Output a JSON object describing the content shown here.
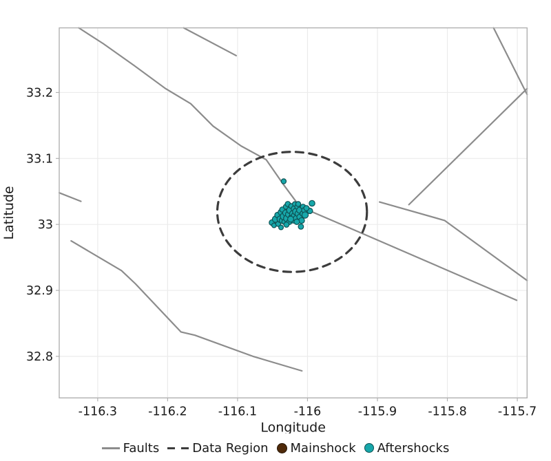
{
  "figure": {
    "background": "#ffffff"
  },
  "colors": {
    "fault": "#8c8c8c",
    "data_region": "#3c3c3c",
    "mainshock_fill": "#4f2a0a",
    "mainshock_stroke": "#231304",
    "aftershock_fill": "#17a7aa",
    "aftershock_stroke": "#0e5254",
    "grid": "#ebebeb",
    "border": "#b0b0b0",
    "tick_mark": "#b0b0b0",
    "text": "#1a1a1a"
  },
  "legend": {
    "items": [
      {
        "label": "Faults",
        "type": "line"
      },
      {
        "label": "Data Region",
        "type": "dashed"
      },
      {
        "label": "Mainshock",
        "type": "dot"
      },
      {
        "label": "Aftershocks",
        "type": "dot"
      }
    ]
  },
  "chart_data": {
    "type": "scatter",
    "title": "",
    "xlabel": "Longitude",
    "ylabel": "Latitude",
    "xlim": [
      -116.355,
      -115.686
    ],
    "ylim": [
      32.737,
      33.298
    ],
    "xticks": [
      -116.3,
      -116.2,
      -116.1,
      -116.0,
      -115.9,
      -115.8,
      -115.7
    ],
    "xtick_labels": [
      "-116.3",
      "-116.2",
      "-116.1",
      "-116",
      "-115.9",
      "-115.8",
      "-115.7"
    ],
    "yticks": [
      32.8,
      32.9,
      33.0,
      33.1,
      33.2
    ],
    "ytick_labels": [
      "32.8",
      "32.9",
      "33",
      "33.1",
      "33.2"
    ],
    "grid": true,
    "legend_position": "bottom",
    "faults": [
      [
        [
          -116.327,
          33.298
        ],
        [
          -116.292,
          33.274
        ],
        [
          -116.248,
          33.241
        ],
        [
          -116.203,
          33.206
        ],
        [
          -116.167,
          33.183
        ],
        [
          -116.135,
          33.149
        ],
        [
          -116.095,
          33.119
        ],
        [
          -116.059,
          33.098
        ],
        [
          -116.034,
          33.06
        ],
        [
          -116.011,
          33.027
        ],
        [
          -115.921,
          32.986
        ],
        [
          -115.701,
          32.885
        ]
      ],
      [
        [
          -115.897,
          33.034
        ],
        [
          -115.804,
          33.006
        ],
        [
          -115.686,
          32.915
        ]
      ],
      [
        [
          -115.734,
          33.298
        ],
        [
          -115.686,
          33.197
        ]
      ],
      [
        [
          -115.686,
          33.206
        ],
        [
          -115.855,
          33.03
        ]
      ],
      [
        [
          -116.338,
          32.975
        ],
        [
          -116.266,
          32.93
        ],
        [
          -116.246,
          32.91
        ],
        [
          -116.181,
          32.837
        ],
        [
          -116.161,
          32.832
        ],
        [
          -116.078,
          32.8
        ],
        [
          -116.008,
          32.778
        ]
      ],
      [
        [
          -116.355,
          33.048
        ],
        [
          -116.324,
          33.035
        ]
      ],
      [
        [
          -116.177,
          33.298
        ],
        [
          -116.102,
          33.256
        ]
      ]
    ],
    "data_region": {
      "center": [
        -116.022,
        33.019
      ],
      "rx_deg": 0.107,
      "ry_deg": 0.091
    },
    "mainshock": {
      "lon": -116.027,
      "lat": 33.025,
      "r": 6.5
    },
    "aftershocks": [
      [
        -116.034,
        33.0654,
        3.6
      ],
      [
        -115.9936,
        33.032,
        4.2
      ],
      [
        -116.0005,
        33.0226,
        3.8
      ],
      [
        -115.9966,
        33.0205,
        4.0
      ],
      [
        -116.0094,
        32.9966,
        3.8
      ],
      [
        -116.0507,
        33.0028,
        4.2
      ],
      [
        -116.0478,
        32.9986,
        3.4
      ],
      [
        -116.0458,
        33.008,
        4.6
      ],
      [
        -116.0429,
        33.0143,
        4.0
      ],
      [
        -116.0419,
        33.0007,
        3.6
      ],
      [
        -116.0389,
        33.008,
        4.8
      ],
      [
        -116.0379,
        33.0185,
        4.2
      ],
      [
        -116.036,
        33.0226,
        3.8
      ],
      [
        -116.036,
        33.0059,
        4.4
      ],
      [
        -116.034,
        33.0122,
        5.0
      ],
      [
        -116.033,
        33.0039,
        3.8
      ],
      [
        -116.031,
        33.0174,
        4.6
      ],
      [
        -116.031,
        33.0268,
        3.6
      ],
      [
        -116.0291,
        33.0091,
        5.2
      ],
      [
        -116.0281,
        33.031,
        3.8
      ],
      [
        -116.0271,
        33.0153,
        4.4
      ],
      [
        -116.0261,
        33.0039,
        4.0
      ],
      [
        -116.0251,
        33.0216,
        4.8
      ],
      [
        -116.0232,
        33.0278,
        3.6
      ],
      [
        -116.0222,
        33.0101,
        5.0
      ],
      [
        -116.0212,
        33.0164,
        4.4
      ],
      [
        -116.0202,
        33.0059,
        3.8
      ],
      [
        -116.0192,
        33.0237,
        4.2
      ],
      [
        -116.0182,
        33.031,
        3.4
      ],
      [
        -116.0182,
        33.0132,
        4.8
      ],
      [
        -116.0163,
        33.0195,
        5.0
      ],
      [
        -116.0163,
        33.0091,
        4.2
      ],
      [
        -116.0143,
        33.0268,
        3.8
      ],
      [
        -116.0133,
        33.0164,
        4.6
      ],
      [
        -116.0133,
        33.031,
        3.6
      ],
      [
        -116.0113,
        33.0216,
        4.4
      ],
      [
        -116.0113,
        33.0112,
        4.0
      ],
      [
        -116.0084,
        33.0059,
        4.2
      ],
      [
        -116.0064,
        33.0268,
        3.8
      ],
      [
        -116.0064,
        33.0164,
        4.4
      ],
      [
        -116.0044,
        33.0216,
        4.0
      ],
      [
        -116.0034,
        33.0143,
        4.6
      ],
      [
        -116.0015,
        33.0247,
        3.8
      ],
      [
        -116.0379,
        32.9955,
        3.4
      ],
      [
        -116.0301,
        32.9997,
        3.8
      ],
      [
        -116.0241,
        33.008,
        4.4
      ],
      [
        -116.0153,
        33.0039,
        4.0
      ]
    ]
  }
}
